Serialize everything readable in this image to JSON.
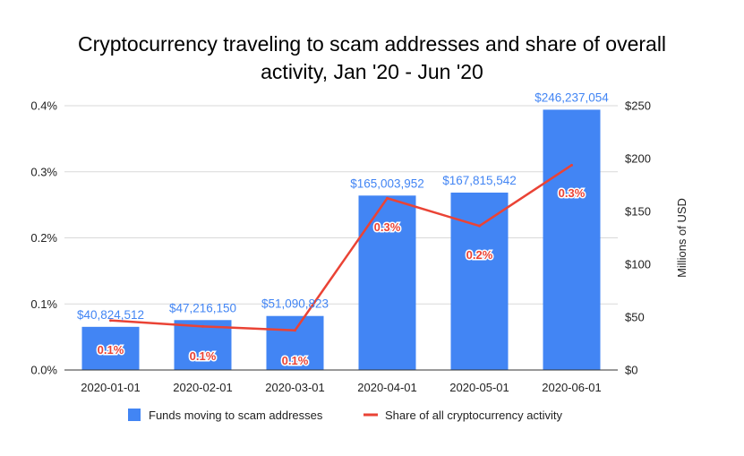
{
  "chart_data": {
    "type": "bar",
    "title_lines": [
      "Cryptocurrency traveling to scam addresses and share of overall",
      "activity, Jan '20 - Jun '20"
    ],
    "categories": [
      "2020-01-01",
      "2020-02-01",
      "2020-03-01",
      "2020-04-01",
      "2020-05-01",
      "2020-06-01"
    ],
    "series": [
      {
        "name": "Funds moving to scam addresses",
        "type": "bar",
        "axis": "right",
        "color": "#4285f4",
        "values": [
          40824512,
          47216150,
          51090823,
          165003952,
          167815542,
          246237054
        ],
        "labels": [
          "$40,824,512",
          "$47,216,150",
          "$51,090,823",
          "$165,003,952",
          "$167,815,542",
          "$246,237,054"
        ]
      },
      {
        "name": "Share of all cryptocurrency activity",
        "type": "line",
        "axis": "left",
        "color": "#ea4335",
        "values": [
          0.075,
          0.066,
          0.06,
          0.26,
          0.218,
          0.31
        ],
        "labels": [
          "0.1%",
          "0.1%",
          "0.1%",
          "0.3%",
          "0.2%",
          "0.3%"
        ]
      }
    ],
    "y_left": {
      "ticks": [
        "0.0%",
        "0.1%",
        "0.2%",
        "0.3%",
        "0.4%"
      ],
      "range": [
        0,
        0.4
      ]
    },
    "y_right": {
      "label": "Millions of USD",
      "ticks": [
        "$0",
        "$50",
        "$100",
        "$150",
        "$200",
        "$250"
      ],
      "range": [
        0,
        250000000
      ]
    },
    "grid": "horizontal",
    "legend_position": "bottom"
  }
}
